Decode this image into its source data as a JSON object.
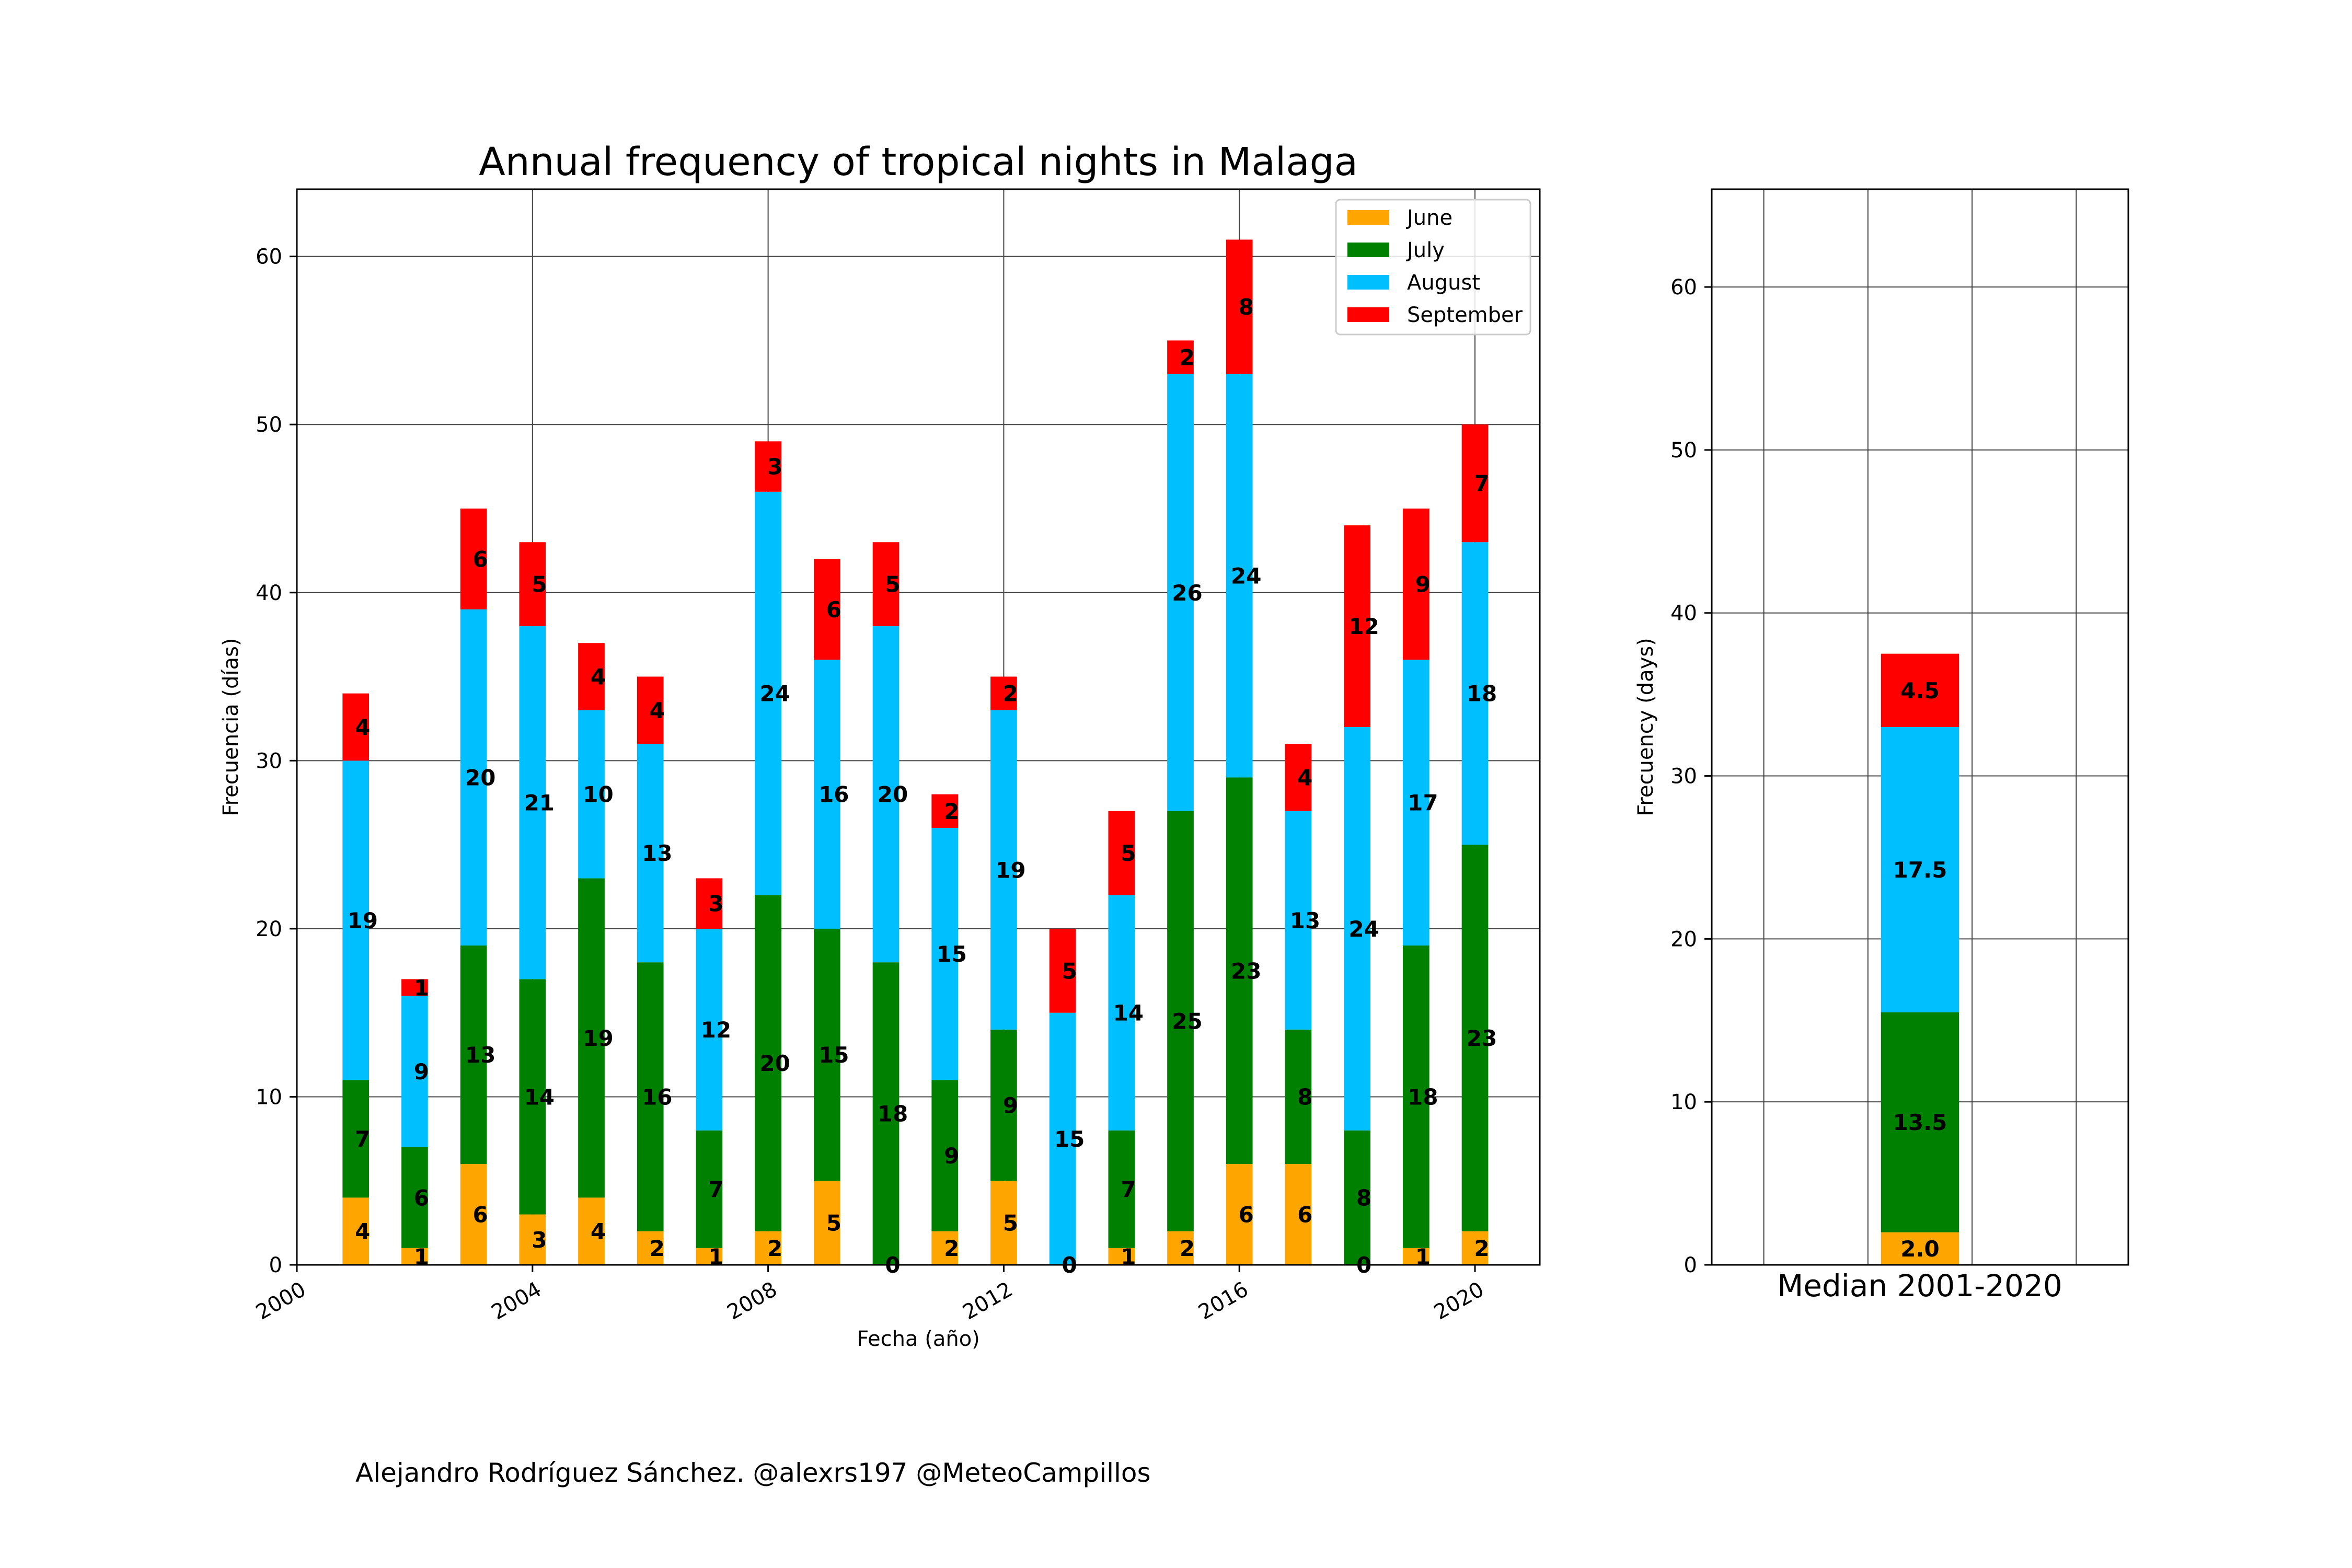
{
  "credit": "Alejandro Rodríguez Sánchez. @alexrs197 @MeteoCampillos",
  "colors": {
    "June": "#FFA500",
    "July": "#008000",
    "August": "#00BFFF",
    "September": "#FF0000"
  },
  "chart_data": [
    {
      "type": "bar",
      "stacked": true,
      "title": "Annual frequency of tropical nights in Malaga",
      "xlabel": "Fecha (año)",
      "ylabel": "Frecuencia (días)",
      "xlim": [
        2000,
        2021.1
      ],
      "ylim": [
        0,
        64
      ],
      "xticks": [
        "2000",
        "2004",
        "2008",
        "2012",
        "2016",
        "2020"
      ],
      "yticks": [
        "0",
        "10",
        "20",
        "30",
        "40",
        "50",
        "60"
      ],
      "grid": true,
      "legend_position": "top-right",
      "x": [
        2001,
        2002,
        2003,
        2004,
        2005,
        2006,
        2007,
        2008,
        2009,
        2010,
        2011,
        2012,
        2013,
        2014,
        2015,
        2016,
        2017,
        2018,
        2019,
        2020
      ],
      "series": [
        {
          "name": "June",
          "values": [
            4,
            1,
            6,
            3,
            4,
            2,
            1,
            2,
            5,
            0,
            2,
            5,
            0,
            1,
            2,
            6,
            6,
            0,
            1,
            2
          ]
        },
        {
          "name": "July",
          "values": [
            7,
            6,
            13,
            14,
            19,
            16,
            7,
            20,
            15,
            18,
            9,
            9,
            0,
            7,
            25,
            23,
            8,
            8,
            18,
            23
          ]
        },
        {
          "name": "August",
          "values": [
            19,
            9,
            20,
            21,
            10,
            13,
            12,
            24,
            16,
            20,
            15,
            19,
            15,
            14,
            26,
            24,
            13,
            24,
            17,
            18
          ]
        },
        {
          "name": "September",
          "values": [
            4,
            1,
            6,
            5,
            4,
            4,
            3,
            3,
            6,
            5,
            2,
            2,
            5,
            5,
            2,
            8,
            4,
            12,
            9,
            7
          ]
        }
      ]
    },
    {
      "type": "bar",
      "stacked": true,
      "title": "",
      "xlabel": "Median 2001-2020",
      "ylabel": "Frecuency (days)",
      "ylim": [
        0,
        66
      ],
      "yticks": [
        "0",
        "10",
        "20",
        "30",
        "40",
        "50",
        "60"
      ],
      "grid": true,
      "categories": [
        "Median 2001-2020"
      ],
      "series": [
        {
          "name": "June",
          "values": [
            2.0
          ]
        },
        {
          "name": "July",
          "values": [
            13.5
          ]
        },
        {
          "name": "August",
          "values": [
            17.5
          ]
        },
        {
          "name": "September",
          "values": [
            4.5
          ]
        }
      ],
      "labels": [
        "2.0",
        "13.5",
        "17.5",
        "4.5"
      ]
    }
  ]
}
